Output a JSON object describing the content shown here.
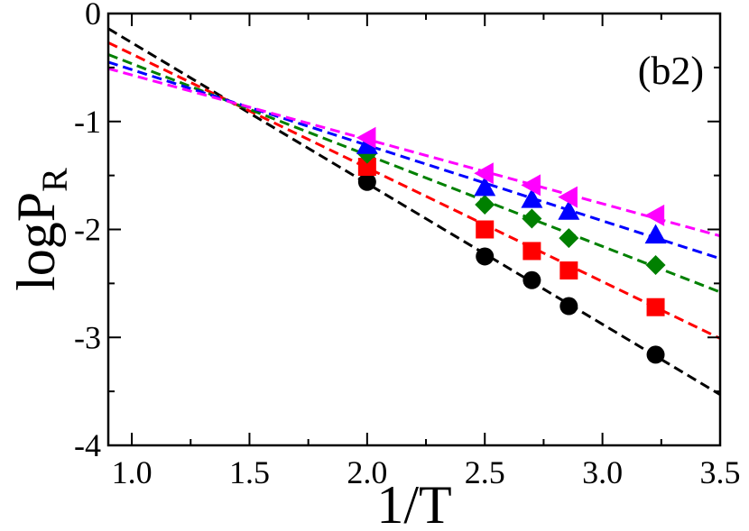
{
  "chart_data": {
    "type": "scatter",
    "title": "",
    "panel_label": "(b2)",
    "xlabel": "1/T",
    "ylabel": {
      "main": "logP",
      "subscript": "R"
    },
    "xlim": [
      0.9,
      3.5
    ],
    "ylim": [
      -4,
      0
    ],
    "x_ticks": [
      1.0,
      1.5,
      2.0,
      2.5,
      3.0,
      3.5
    ],
    "x_tick_labels": [
      "1.0",
      "1.5",
      "2.0",
      "2.5",
      "3.0",
      "3.5"
    ],
    "y_ticks": [
      0,
      -1,
      -2,
      -3,
      -4
    ],
    "y_tick_labels": [
      "0",
      "-1",
      "-2",
      "-3",
      "-4"
    ],
    "x": [
      2.0,
      2.5,
      2.7,
      2.857,
      3.226
    ],
    "series": [
      {
        "name": "circle",
        "marker": "circle",
        "color": "#000000",
        "values": [
          -1.56,
          -2.25,
          -2.47,
          -2.71,
          -3.16
        ],
        "fit": {
          "x0": 0.9,
          "y0": -0.14,
          "x1": 3.5,
          "y1": -3.53
        }
      },
      {
        "name": "square",
        "marker": "square",
        "color": "#ff0000",
        "values": [
          -1.42,
          -2.0,
          -2.2,
          -2.38,
          -2.72
        ],
        "fit": {
          "x0": 0.9,
          "y0": -0.27,
          "x1": 3.5,
          "y1": -3.01
        }
      },
      {
        "name": "diamond",
        "marker": "diamond",
        "color": "#008000",
        "values": [
          -1.3,
          -1.77,
          -1.9,
          -2.08,
          -2.33
        ],
        "fit": {
          "x0": 0.9,
          "y0": -0.38,
          "x1": 3.5,
          "y1": -2.58
        }
      },
      {
        "name": "triangle-up",
        "marker": "triangle-up",
        "color": "#0000ff",
        "values": [
          -1.22,
          -1.61,
          -1.72,
          -1.83,
          -2.05
        ],
        "fit": {
          "x0": 0.9,
          "y0": -0.45,
          "x1": 3.5,
          "y1": -2.27
        }
      },
      {
        "name": "triangle-left",
        "marker": "triangle-left",
        "color": "#ff00ff",
        "values": [
          -1.15,
          -1.48,
          -1.59,
          -1.7,
          -1.87
        ],
        "fit": {
          "x0": 0.9,
          "y0": -0.51,
          "x1": 3.5,
          "y1": -2.06
        }
      }
    ]
  }
}
